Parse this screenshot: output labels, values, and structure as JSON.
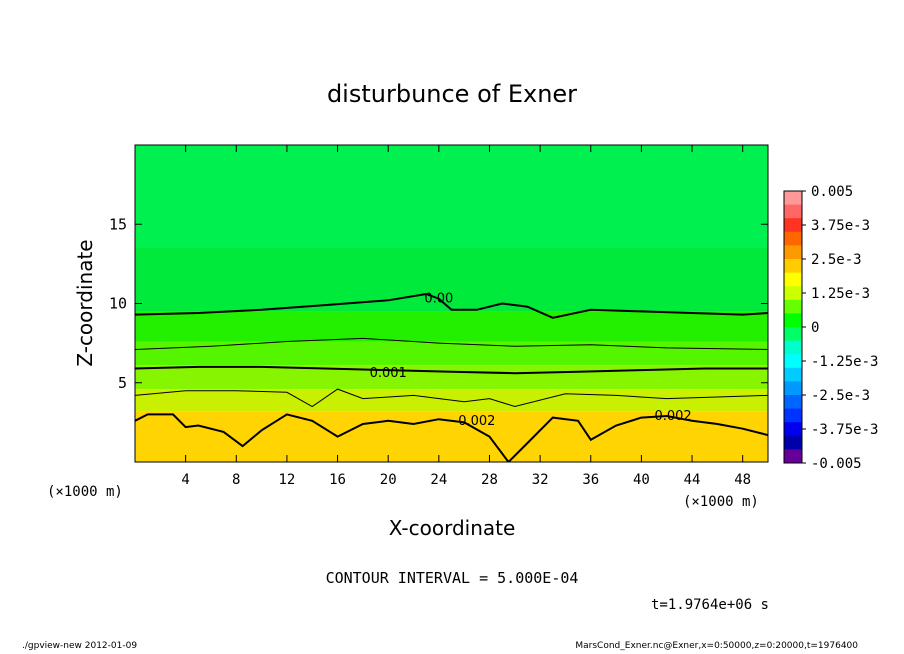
{
  "chart_data": {
    "type": "heatmap",
    "title": "disturbunce of Exner",
    "xlabel": "X-coordinate",
    "ylabel": "Z-coordinate",
    "x_unit": "(×1000 m)",
    "z_unit": "(×1000 m)",
    "xlim": [
      0,
      50
    ],
    "ylim": [
      0,
      20
    ],
    "x_ticks": [
      "4",
      "8",
      "12",
      "16",
      "20",
      "24",
      "28",
      "32",
      "36",
      "40",
      "44",
      "48"
    ],
    "y_ticks": [
      "5",
      "10",
      "15"
    ],
    "colorbar": {
      "range": [
        -0.005,
        0.005
      ],
      "labels": [
        "0.005",
        "3.75e-3",
        "2.5e-3",
        "1.25e-3",
        "0",
        "-1.25e-3",
        "-2.5e-3",
        "-3.75e-3",
        "-0.005"
      ],
      "colors": [
        "#ff9999",
        "#ff6666",
        "#ff3322",
        "#ff6600",
        "#ff9900",
        "#ffcc00",
        "#ffff00",
        "#ccff00",
        "#66ff00",
        "#00ff00",
        "#00ff66",
        "#00ffcc",
        "#00ffff",
        "#00ccff",
        "#0099ff",
        "#0066ff",
        "#0033ff",
        "#0000ee",
        "#0000aa",
        "#660099"
      ]
    },
    "contour_labels": [
      {
        "text": "0.00",
        "x": 24,
        "z": 10.3
      },
      {
        "text": "0.001",
        "x": 20,
        "z": 5.6
      },
      {
        "text": "0.002",
        "x": 27,
        "z": 2.6
      },
      {
        "text": "0.002",
        "x": 42.5,
        "z": 2.9
      }
    ],
    "contour_interval_text": "CONTOUR INTERVAL = 5.000E-04",
    "time_text": "t=1.9764e+06 s"
  },
  "footer": {
    "left": "./gpview-new   2012-01-09",
    "right": "MarsCond_Exner.nc@Exner,x=0:50000,z=0:20000,t=1976400"
  }
}
